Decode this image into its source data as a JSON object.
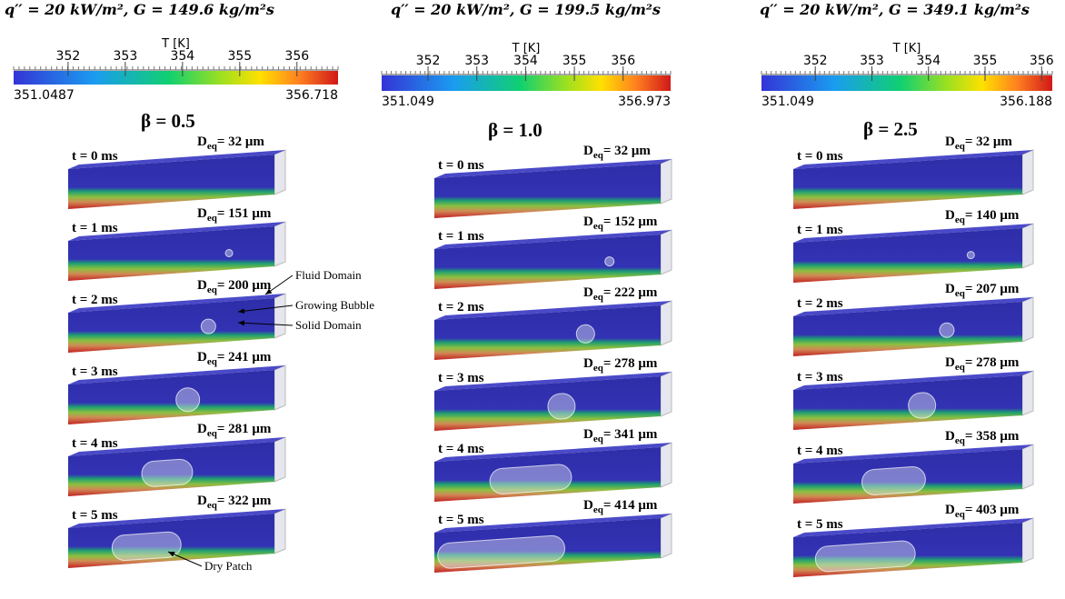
{
  "panels": [
    {
      "header": "q′′ = 20 kW/m², G = 149.6 kg/m²s",
      "colorbar": {
        "title": "T [K]",
        "min": 351.0487,
        "max": 356.718,
        "ticks": [
          352,
          353,
          354,
          355,
          356
        ]
      },
      "beta": "β = 0.5",
      "rows": [
        {
          "time": "t = 0 ms",
          "deq": {
            "base": "D",
            "sub": "eq",
            "value": "= 32 μm"
          }
        },
        {
          "time": "t = 1 ms",
          "deq": {
            "base": "D",
            "sub": "eq",
            "value": "= 151 μm"
          }
        },
        {
          "time": "t = 2 ms",
          "deq": {
            "base": "D",
            "sub": "eq",
            "value": "= 200 μm"
          }
        },
        {
          "time": "t = 3 ms",
          "deq": {
            "base": "D",
            "sub": "eq",
            "value": "= 241 μm"
          }
        },
        {
          "time": "t = 4 ms",
          "deq": {
            "base": "D",
            "sub": "eq",
            "value": "= 281 μm"
          }
        },
        {
          "time": "t = 5 ms",
          "deq": {
            "base": "D",
            "sub": "eq",
            "value": "= 322 μm"
          }
        }
      ]
    },
    {
      "header": "q′′ = 20 kW/m², G = 199.5 kg/m²s",
      "colorbar": {
        "title": "T [K]",
        "min": 351.049,
        "max": 356.973,
        "ticks": [
          352,
          353,
          354,
          355,
          356
        ]
      },
      "beta": "β = 1.0",
      "rows": [
        {
          "time": "t = 0 ms",
          "deq": {
            "base": "D",
            "sub": "eq",
            "value": "= 32 μm"
          }
        },
        {
          "time": "t = 1 ms",
          "deq": {
            "base": "D",
            "sub": "eq",
            "value": "= 152 μm"
          }
        },
        {
          "time": "t = 2 ms",
          "deq": {
            "base": "D",
            "sub": "eq",
            "value": "= 222 μm"
          }
        },
        {
          "time": "t = 3 ms",
          "deq": {
            "base": "D",
            "sub": "eq",
            "value": "= 278 μm"
          }
        },
        {
          "time": "t = 4 ms",
          "deq": {
            "base": "D",
            "sub": "eq",
            "value": "= 341 μm"
          }
        },
        {
          "time": "t = 5 ms",
          "deq": {
            "base": "D",
            "sub": "eq",
            "value": "= 414 μm"
          }
        }
      ]
    },
    {
      "header": "q′′ = 20 kW/m², G = 349.1 kg/m²s",
      "colorbar": {
        "title": "T [K]",
        "min": 351.049,
        "max": 356.188,
        "ticks": [
          352,
          353,
          354,
          355,
          356
        ]
      },
      "beta": "β = 2.5",
      "rows": [
        {
          "time": "t = 0 ms",
          "deq": {
            "base": "D",
            "sub": "eq",
            "value": "= 32 μm"
          }
        },
        {
          "time": "t = 1 ms",
          "deq": {
            "base": "D",
            "sub": "eq",
            "value": "= 140 μm"
          }
        },
        {
          "time": "t = 2 ms",
          "deq": {
            "base": "D",
            "sub": "eq",
            "value": "= 207 μm"
          }
        },
        {
          "time": "t = 3 ms",
          "deq": {
            "base": "D",
            "sub": "eq",
            "value": "= 278 μm"
          }
        },
        {
          "time": "t = 4 ms",
          "deq": {
            "base": "D",
            "sub": "eq",
            "value": "= 358 μm"
          }
        },
        {
          "time": "t = 5 ms",
          "deq": {
            "base": "D",
            "sub": "eq",
            "value": "= 403 μm"
          }
        }
      ]
    }
  ],
  "annotations": {
    "fluid_domain": "Fluid Domain",
    "growing_bubble": "Growing Bubble",
    "solid_domain": "Solid Domain",
    "dry_patch": "Dry Patch"
  }
}
